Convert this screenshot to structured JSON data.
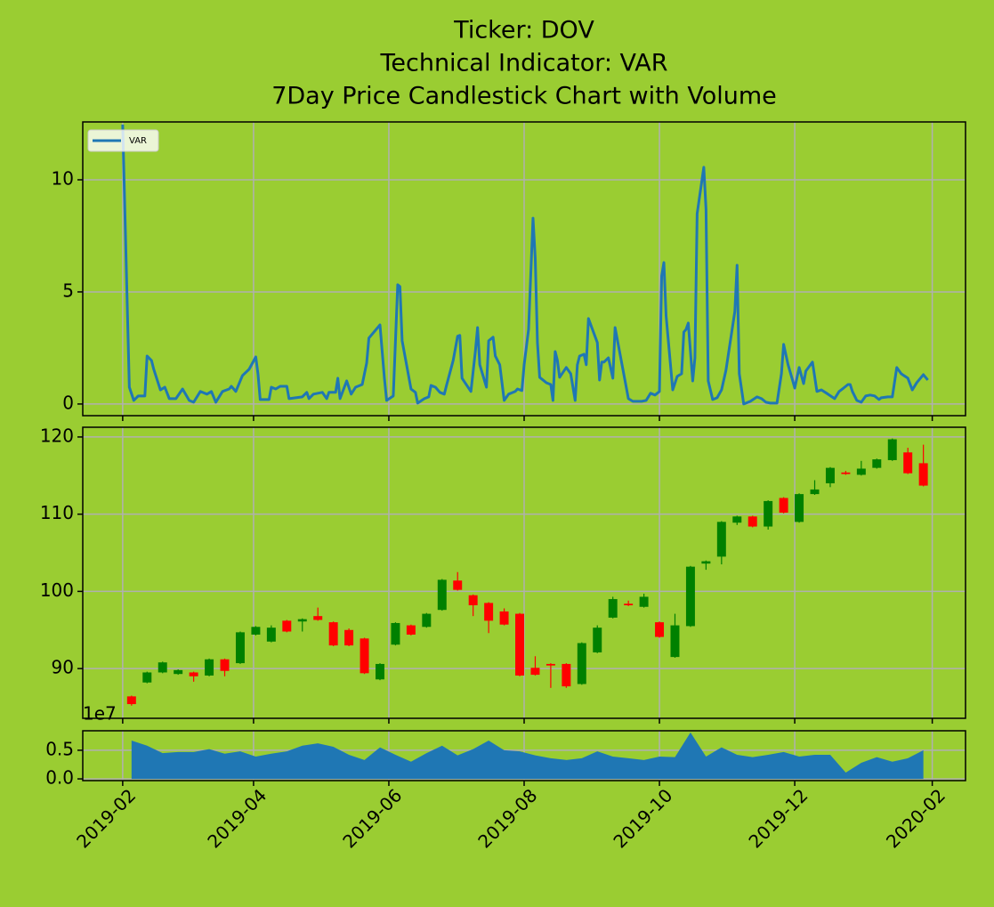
{
  "chart_data": [
    {
      "type": "line",
      "title": [
        "Ticker: DOV",
        "Technical Indicator: VAR",
        "7Day Price Candlestick Chart with Volume"
      ],
      "x": [
        "2019-02-01",
        "2019-02-04",
        "2019-02-06",
        "2019-02-08",
        "2019-02-11",
        "2019-02-12",
        "2019-02-14",
        "2019-02-15",
        "2019-02-18",
        "2019-02-20",
        "2019-02-22",
        "2019-02-25",
        "2019-02-28",
        "2019-03-03",
        "2019-03-05",
        "2019-03-08",
        "2019-03-11",
        "2019-03-13",
        "2019-03-15",
        "2019-03-18",
        "2019-03-21",
        "2019-03-22",
        "2019-03-24",
        "2019-03-27",
        "2019-03-30",
        "2019-04-02",
        "2019-04-03",
        "2019-04-04",
        "2019-04-08",
        "2019-04-09",
        "2019-04-11",
        "2019-04-13",
        "2019-04-16",
        "2019-04-17",
        "2019-04-23",
        "2019-04-25",
        "2019-04-26",
        "2019-04-28",
        "2019-05-02",
        "2019-05-04",
        "2019-05-05",
        "2019-05-08",
        "2019-05-09",
        "2019-05-10",
        "2019-05-13",
        "2019-05-15",
        "2019-05-17",
        "2019-05-20",
        "2019-05-22",
        "2019-05-23",
        "2019-05-28",
        "2019-05-30",
        "2019-05-31",
        "2019-06-03",
        "2019-06-05",
        "2019-06-06",
        "2019-06-07",
        "2019-06-11",
        "2019-06-13",
        "2019-06-14",
        "2019-06-17",
        "2019-06-19",
        "2019-06-20",
        "2019-06-22",
        "2019-06-24",
        "2019-06-26",
        "2019-06-27",
        "2019-06-30",
        "2019-07-02",
        "2019-07-03",
        "2019-07-04",
        "2019-07-08",
        "2019-07-10",
        "2019-07-11",
        "2019-07-12",
        "2019-07-15",
        "2019-07-16",
        "2019-07-18",
        "2019-07-19",
        "2019-07-21",
        "2019-07-23",
        "2019-07-25",
        "2019-07-28",
        "2019-07-29",
        "2019-07-31",
        "2019-08-01",
        "2019-08-03",
        "2019-08-05",
        "2019-08-06",
        "2019-08-07",
        "2019-08-08",
        "2019-08-11",
        "2019-08-13",
        "2019-08-14",
        "2019-08-15",
        "2019-08-16",
        "2019-08-17",
        "2019-08-20",
        "2019-08-22",
        "2019-08-24",
        "2019-08-25",
        "2019-08-26",
        "2019-08-28",
        "2019-08-29",
        "2019-08-30",
        "2019-09-03",
        "2019-09-04",
        "2019-09-05",
        "2019-09-06",
        "2019-09-08",
        "2019-09-10",
        "2019-09-11",
        "2019-09-17",
        "2019-09-19",
        "2019-09-23",
        "2019-09-25",
        "2019-09-27",
        "2019-09-29",
        "2019-10-01",
        "2019-10-02",
        "2019-10-03",
        "2019-10-04",
        "2019-10-07",
        "2019-10-09",
        "2019-10-11",
        "2019-10-12",
        "2019-10-13",
        "2019-10-14",
        "2019-10-16",
        "2019-10-17",
        "2019-10-18",
        "2019-10-21",
        "2019-10-22",
        "2019-10-23",
        "2019-10-25",
        "2019-10-27",
        "2019-10-29",
        "2019-10-31",
        "2019-11-04",
        "2019-11-05",
        "2019-11-06",
        "2019-11-08",
        "2019-11-11",
        "2019-11-14",
        "2019-11-16",
        "2019-11-18",
        "2019-11-20",
        "2019-11-23",
        "2019-11-25",
        "2019-11-26",
        "2019-11-28",
        "2019-11-30",
        "2019-12-01",
        "2019-12-03",
        "2019-12-05",
        "2019-12-06",
        "2019-12-09",
        "2019-12-11",
        "2019-12-13",
        "2019-12-16",
        "2019-12-19",
        "2019-12-21",
        "2019-12-23",
        "2019-12-25",
        "2019-12-26",
        "2019-12-27",
        "2019-12-29",
        "2019-12-31",
        "2020-01-02",
        "2020-01-04",
        "2020-01-06",
        "2020-01-08",
        "2020-01-09",
        "2020-01-12",
        "2020-01-14",
        "2020-01-16",
        "2020-01-18",
        "2020-01-21",
        "2020-01-23",
        "2020-01-25",
        "2020-01-28",
        "2020-01-30"
      ],
      "series": [
        {
          "name": "VAR",
          "color": "#1f77b4",
          "values": [
            12.46,
            0.75,
            0.16,
            0.36,
            0.36,
            2.14,
            1.94,
            1.55,
            0.63,
            0.75,
            0.24,
            0.24,
            0.67,
            0.16,
            0.08,
            0.56,
            0.44,
            0.56,
            0.08,
            0.56,
            0.67,
            0.79,
            0.56,
            1.27,
            1.55,
            2.1,
            1.35,
            0.2,
            0.2,
            0.75,
            0.67,
            0.79,
            0.79,
            0.24,
            0.32,
            0.52,
            0.24,
            0.44,
            0.52,
            0.24,
            0.52,
            0.52,
            1.15,
            0.24,
            1.03,
            0.44,
            0.75,
            0.87,
            1.83,
            2.94,
            3.53,
            1.15,
            0.16,
            0.36,
            5.32,
            5.24,
            2.82,
            0.67,
            0.52,
            0.04,
            0.24,
            0.32,
            0.83,
            0.75,
            0.52,
            0.44,
            0.83,
            1.94,
            3.02,
            3.06,
            1.15,
            0.56,
            2.34,
            3.41,
            1.75,
            0.75,
            2.82,
            2.98,
            2.14,
            1.75,
            0.16,
            0.44,
            0.56,
            0.67,
            0.6,
            1.75,
            3.33,
            8.29,
            6.51,
            2.74,
            1.19,
            0.95,
            0.87,
            0.16,
            2.34,
            1.94,
            1.19,
            1.63,
            1.35,
            0.16,
            1.75,
            2.14,
            2.22,
            1.75,
            3.81,
            2.74,
            1.07,
            1.87,
            1.87,
            2.06,
            1.15,
            3.41,
            0.24,
            0.12,
            0.12,
            0.16,
            0.48,
            0.4,
            0.56,
            5.71,
            6.31,
            3.93,
            0.63,
            1.23,
            1.35,
            3.21,
            3.33,
            3.61,
            1.03,
            2.06,
            8.49,
            10.56,
            8.69,
            1.03,
            0.2,
            0.28,
            0.63,
            1.51,
            4.13,
            6.19,
            1.35,
            0,
            0.12,
            0.32,
            0.24,
            0.08,
            0.04,
            0.04,
            1.35,
            2.66,
            1.75,
            1.07,
            0.71,
            1.63,
            0.91,
            1.47,
            1.87,
            0.56,
            0.63,
            0.44,
            0.24,
            0.56,
            0.71,
            0.87,
            0.87,
            0.56,
            0.16,
            0.08,
            0.36,
            0.4,
            0.36,
            0.2,
            0.28,
            0.32,
            0.32,
            1.63,
            1.35,
            1.15,
            0.63,
            0.95,
            1.31,
            1.07
          ]
        }
      ],
      "ylim": [
        -0.52,
        12.58
      ],
      "yticks": [
        0,
        5,
        10
      ],
      "grid": true,
      "legend": "upper left"
    },
    {
      "type": "candlestick",
      "x": [
        "2019-02-05",
        "2019-02-12",
        "2019-02-19",
        "2019-02-26",
        "2019-03-05",
        "2019-03-12",
        "2019-03-19",
        "2019-03-26",
        "2019-04-02",
        "2019-04-09",
        "2019-04-16",
        "2019-04-23",
        "2019-04-30",
        "2019-05-07",
        "2019-05-14",
        "2019-05-21",
        "2019-05-28",
        "2019-06-04",
        "2019-06-11",
        "2019-06-18",
        "2019-06-25",
        "2019-07-02",
        "2019-07-09",
        "2019-07-16",
        "2019-07-23",
        "2019-07-30",
        "2019-08-06",
        "2019-08-13",
        "2019-08-20",
        "2019-08-27",
        "2019-09-03",
        "2019-09-10",
        "2019-09-17",
        "2019-09-24",
        "2019-10-01",
        "2019-10-08",
        "2019-10-15",
        "2019-10-22",
        "2019-10-29",
        "2019-11-05",
        "2019-11-12",
        "2019-11-19",
        "2019-11-26",
        "2019-12-03",
        "2019-12-10",
        "2019-12-17",
        "2019-12-24",
        "2019-12-31",
        "2020-01-07",
        "2020-01-14",
        "2020-01-21",
        "2020-01-28"
      ],
      "open": [
        86.4,
        88.2,
        89.5,
        89.3,
        89.5,
        89.1,
        91.2,
        90.7,
        94.4,
        93.5,
        96.2,
        96.1,
        96.8,
        96.0,
        95.0,
        93.9,
        88.6,
        93.1,
        95.6,
        95.4,
        97.6,
        101.4,
        99.5,
        98.5,
        97.4,
        97.1,
        90.1,
        90.6,
        90.6,
        88.0,
        92.1,
        96.6,
        98.4,
        98.0,
        96.0,
        91.5,
        95.5,
        103.6,
        104.5,
        108.9,
        109.7,
        108.4,
        112.1,
        109.0,
        112.6,
        114.0,
        115.4,
        115.1,
        116.0,
        117.0,
        118.0,
        116.6
      ],
      "high": [
        86.5,
        89.6,
        90.9,
        89.9,
        89.6,
        91.3,
        91.3,
        94.8,
        95.5,
        95.6,
        96.3,
        96.5,
        97.9,
        96.1,
        95.2,
        94.0,
        90.7,
        96.0,
        95.7,
        97.2,
        101.6,
        102.5,
        99.6,
        98.6,
        97.8,
        97.2,
        91.6,
        90.7,
        90.7,
        93.4,
        95.6,
        99.3,
        98.8,
        99.7,
        96.1,
        97.1,
        103.3,
        104.0,
        109.1,
        109.8,
        109.8,
        111.8,
        112.2,
        112.7,
        114.4,
        116.1,
        115.6,
        116.9,
        117.2,
        119.8,
        118.6,
        119.0
      ],
      "low": [
        85.2,
        88.1,
        89.4,
        89.2,
        88.3,
        89.0,
        89.0,
        90.6,
        94.3,
        93.4,
        94.7,
        94.8,
        96.2,
        92.9,
        92.9,
        89.3,
        88.5,
        93.0,
        94.3,
        95.3,
        97.5,
        100.1,
        96.8,
        94.6,
        95.6,
        89.0,
        89.1,
        87.5,
        87.5,
        87.9,
        92.0,
        96.5,
        98.1,
        97.9,
        94.0,
        91.4,
        95.4,
        102.8,
        103.5,
        108.6,
        108.3,
        108.0,
        110.1,
        108.9,
        112.5,
        113.5,
        115.1,
        115.0,
        115.9,
        116.9,
        115.2,
        113.6
      ],
      "close": [
        85.4,
        89.5,
        90.8,
        89.8,
        89.0,
        91.2,
        89.7,
        94.7,
        95.4,
        95.3,
        94.8,
        96.4,
        96.3,
        93.0,
        93.0,
        89.4,
        90.6,
        95.9,
        94.4,
        97.1,
        101.5,
        100.2,
        98.2,
        96.2,
        95.7,
        89.1,
        89.2,
        90.4,
        87.7,
        93.3,
        95.3,
        99.0,
        98.2,
        99.3,
        94.1,
        95.6,
        103.2,
        103.9,
        109.0,
        109.7,
        108.4,
        111.7,
        110.2,
        112.6,
        113.2,
        116.0,
        115.2,
        115.9,
        117.1,
        119.7,
        115.3,
        113.7
      ],
      "up_color": "green",
      "down_color": "red",
      "ylim": [
        83.56,
        121.26
      ],
      "yticks": [
        90,
        100,
        110,
        120
      ],
      "grid": true
    },
    {
      "type": "area",
      "x": [
        "2019-02-05",
        "2019-02-12",
        "2019-02-19",
        "2019-02-26",
        "2019-03-05",
        "2019-03-12",
        "2019-03-19",
        "2019-03-26",
        "2019-04-02",
        "2019-04-09",
        "2019-04-16",
        "2019-04-23",
        "2019-04-30",
        "2019-05-07",
        "2019-05-14",
        "2019-05-21",
        "2019-05-28",
        "2019-06-04",
        "2019-06-11",
        "2019-06-18",
        "2019-06-25",
        "2019-07-02",
        "2019-07-09",
        "2019-07-16",
        "2019-07-23",
        "2019-07-30",
        "2019-08-06",
        "2019-08-13",
        "2019-08-20",
        "2019-08-27",
        "2019-09-03",
        "2019-09-10",
        "2019-09-17",
        "2019-09-24",
        "2019-10-01",
        "2019-10-08",
        "2019-10-15",
        "2019-10-22",
        "2019-10-29",
        "2019-11-05",
        "2019-11-12",
        "2019-11-19",
        "2019-11-26",
        "2019-12-03",
        "2019-12-10",
        "2019-12-17",
        "2019-12-24",
        "2019-12-31",
        "2020-01-07",
        "2020-01-14",
        "2020-01-21",
        "2020-01-28"
      ],
      "values": [
        0.67,
        0.58,
        0.45,
        0.47,
        0.47,
        0.52,
        0.44,
        0.48,
        0.39,
        0.44,
        0.48,
        0.58,
        0.62,
        0.56,
        0.42,
        0.33,
        0.55,
        0.42,
        0.3,
        0.45,
        0.58,
        0.41,
        0.52,
        0.67,
        0.5,
        0.48,
        0.41,
        0.36,
        0.33,
        0.36,
        0.48,
        0.39,
        0.36,
        0.33,
        0.39,
        0.38,
        0.81,
        0.39,
        0.55,
        0.42,
        0.38,
        0.42,
        0.47,
        0.39,
        0.42,
        0.42,
        0.11,
        0.28,
        0.38,
        0.3,
        0.36,
        0.5
      ],
      "color": "#1f77b4",
      "y_offset_label": "1e7",
      "ylim": [
        -0.03,
        0.84
      ],
      "yticks": [
        {
          "value": 0,
          "label": "0.0"
        },
        0.5
      ],
      "grid": true,
      "xlim": [
        "2019-01-14",
        "2020-02-16"
      ],
      "xticks": [
        {
          "value": "2019-02-01",
          "label": "2019-02"
        },
        {
          "value": "2019-04-01",
          "label": "2019-04"
        },
        {
          "value": "2019-06-01",
          "label": "2019-06"
        },
        {
          "value": "2019-08-01",
          "label": "2019-08"
        },
        {
          "value": "2019-10-01",
          "label": "2019-10"
        },
        {
          "value": "2019-12-01",
          "label": "2019-12"
        },
        {
          "value": "2020-02-01",
          "label": "2020-02"
        }
      ]
    }
  ]
}
